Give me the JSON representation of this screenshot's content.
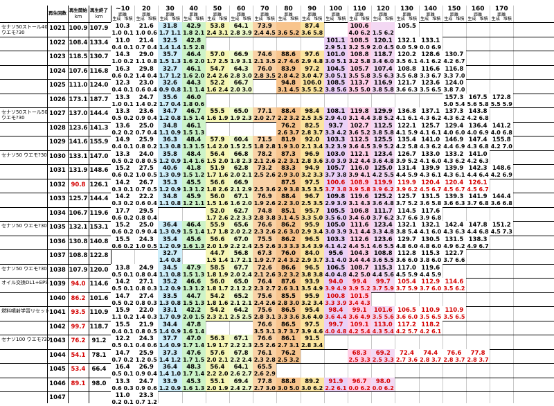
{
  "header": {
    "col_labels": [
      "再生回数",
      "再生開始",
      "再生終了"
    ],
    "unit": "km",
    "dist_label": "距離",
    "sub_labels": [
      "生成",
      "堆積"
    ],
    "distances": [
      "~10",
      "20",
      "30",
      "40",
      "50",
      "60",
      "70",
      "80",
      "90",
      "100",
      "110",
      "120",
      "130",
      "140",
      "150",
      "160",
      "170"
    ]
  },
  "notes": {
    "n1021": "セナソ50ストール40",
    "n1021b": "ウエモ?30",
    "n1027": "セナソ50ストール50",
    "n1027b": "ウエモ?30",
    "n1030": "セナソ50 ウエモ?30",
    "n1035": "セナソ50 ウエモ?30",
    "n1038": "セナソ50 ウエモ?30",
    "n1039": "オイル交換DL1+EPS",
    "n1041": "燃料噴射学習リセット",
    "n1043": "セナソ100 ウエモ?30"
  },
  "rows": [
    {
      "id": "1021",
      "s": "100.9",
      "e": "107.9",
      "red": false,
      "top": [
        "10.3",
        "21.6",
        "31.8",
        "42.9",
        "53.8",
        "64.1",
        "73.9",
        "",
        "87.4",
        "",
        "100.6",
        "",
        "105.5"
      ],
      "bot": [
        "1.0 0.1",
        "1.0 0.6",
        "1.7 1.1",
        "1.8 2.1",
        "2.4 3.1",
        "2.8 3.9",
        "2.4 4.5",
        "3.6 5.2",
        "3.6 5.8",
        "",
        "4.0 6.2",
        "1.5 6.2"
      ]
    },
    {
      "id": "1022",
      "s": "108.4",
      "e": "133.4",
      "red": false,
      "top": [
        "11.0",
        "21.4",
        "32.5",
        "42.8",
        "",
        "",
        "",
        "",
        "",
        "101.1",
        "108.5",
        "120.1",
        "132.1",
        "133.1"
      ],
      "bot": [
        "0.4 0.1",
        "0.7 0.4",
        "1.4 1.4",
        "1.5 2.8",
        "",
        "",
        "",
        "",
        "",
        "2.9 5.1",
        "3.2 5.9",
        "2.0 4.5",
        "0.0 5.9",
        "0.0 6.9"
      ]
    },
    {
      "id": "1023",
      "s": "118.5",
      "e": "130.7",
      "red": false,
      "top": [
        "14.3",
        "29.0",
        "35.7",
        "46.4",
        "57.0",
        "66.9",
        "74.6",
        "88.6",
        "97.6",
        "101.0",
        "108.8",
        "118.7",
        "120.2",
        "128.6",
        "130.7"
      ],
      "bot": [
        "1.0 0.2",
        "1.1 0.8",
        "1.5 1.3",
        "1.6 2.0",
        "1.7 2.5",
        "1.9 3.1",
        "2.1 3.5",
        "2.7 4.6",
        "2.9 4.8",
        "3.0 5.1",
        "3.2 5.8",
        "3.4 6.0",
        "3.5 6.1",
        "4.1 6.2",
        "4.2 6.7"
      ]
    },
    {
      "id": "1024",
      "s": "107.6",
      "e": "116.8",
      "red": false,
      "top": [
        "16.3",
        "29.8",
        "32.7",
        "46.1",
        "54.7",
        "64.3",
        "76.0",
        "83.9",
        "97.2",
        "104.5",
        "105.7",
        "107.4",
        "108.8",
        "116.6",
        "116.8"
      ],
      "bot": [
        "0.6 0.2",
        "1.4 0.4",
        "1.7 1.2",
        "1.6 2.0",
        "2.4 2.6",
        "2.8 3.0",
        "2.8 3.5",
        "2.8 4.2",
        "3.0 4.7",
        "3.0 5.1",
        "3.5 5.8",
        "3.5 6.3",
        "3.5 6.8",
        "3.3 6.7",
        "3.3 7.0"
      ]
    },
    {
      "id": "1025",
      "s": "111.0",
      "e": "124.0",
      "red": false,
      "top": [
        "12.3",
        "23.0",
        "32.6",
        "44.3",
        "52.2",
        "66.7",
        "",
        "94.8",
        "106.0",
        "108.5",
        "113.7",
        "116.9",
        "121.7",
        "123.6",
        "124.0"
      ],
      "bot": [
        "0.4 0.1",
        "0.6 0.4",
        "0.9 0.8",
        "1.1 1.4",
        "1.6 2.4",
        "2.0 3.0",
        "",
        "3.1 4.5",
        "3.5 5.2",
        "3.8 5.6",
        "3.5 5.0",
        "3.8 5.8",
        "3.6 6.3",
        "3.5 6.5",
        "3.8 7.0"
      ]
    },
    {
      "id": "1026",
      "s": "173.1",
      "e": "187.7",
      "red": false,
      "top": [
        "13.3",
        "24.7",
        "35.6",
        "46.0",
        "",
        "",
        "",
        "",
        "",
        "",
        "",
        "",
        "",
        "",
        "157.3",
        "167.5",
        "172.8"
      ],
      "bot": [
        "1.0 0.1",
        "1.4 0.2",
        "1.7 0.4",
        "1.8 0.6",
        "",
        "",
        "",
        "",
        "",
        "",
        "",
        "",
        "",
        "",
        "5.0 5.4",
        "5.6 5.8",
        "5.5 5.9"
      ]
    },
    {
      "id": "1027",
      "s": "137.0",
      "e": "144.4",
      "red": false,
      "top": [
        "13.3",
        "23.6",
        "34.7",
        "46.7",
        "55.5",
        "65.0",
        "77.1",
        "88.4",
        "98.4",
        "108.1",
        "119.8",
        "129.9",
        "136.8",
        "137.1",
        "137.3",
        "143.8"
      ],
      "bot": [
        "0.5 0.2",
        "0.9 0.4",
        "1.2 0.8",
        "1.5 1.4",
        "1.6 1.9",
        "1.9 2.3",
        "2.0 2.7",
        "2.2 3.2",
        "2.5 3.5",
        "2.9 4.0",
        "3.1 4.4",
        "3.8 5.2",
        "4.1 6.1",
        "4.3 6.2",
        "4.3 6.2",
        "4.2 6.8"
      ]
    },
    {
      "id": "1028",
      "s": "123.6",
      "e": "141.3",
      "red": false,
      "top": [
        "13.6",
        "25.0",
        "34.8",
        "46.1",
        "",
        "",
        "",
        "76.2",
        "82.5",
        "93.7",
        "102.7",
        "112.5",
        "122.1",
        "125.7",
        "129.4",
        "136.4",
        "141.2"
      ],
      "bot": [
        "0.2 0.2",
        "0.7 0.4",
        "1.1 0.9",
        "1.5 1.3",
        "",
        "",
        "",
        "2.6 3.7",
        "2.8 3.7",
        "3.3 4.2",
        "3.6 5.2",
        "3.8 5.8",
        "4.1 5.9",
        "4.1 6.1",
        "4.0 6.0",
        "4.0 6.9",
        "4.0 6.8"
      ]
    },
    {
      "id": "1029",
      "s": "141.6",
      "e": "155.9",
      "red": false,
      "top": [
        "14.9",
        "25.9",
        "36.3",
        "48.4",
        "57.9",
        "60.4",
        "71.5",
        "81.9",
        "92.0",
        "103.3",
        "112.5",
        "125.5",
        "135.4",
        "141.0",
        "146.9",
        "147.4",
        "155.8"
      ],
      "bot": [
        "0.4 0.1",
        "0.8 0.2",
        "1.3 0.8",
        "1.3 1.5",
        "1.4 2.0",
        "1.5 2.5",
        "1.8 2.8",
        "1.9 3.0",
        "2.1 3.4",
        "3.2 3.9",
        "3.6 4.5",
        "3.9 5.2",
        "4.2 5.8",
        "4.3 6.2",
        "4.4 6.9",
        "4.3 6.8",
        "4.2 7.0"
      ]
    },
    {
      "id": "1030",
      "s": "133.1",
      "e": "147.0",
      "red": false,
      "top": [
        "13.3",
        "24.0",
        "35.8",
        "48.4",
        "56.4",
        "66.8",
        "78.2",
        "87.3",
        "96.9",
        "103.0",
        "112.1",
        "123.4",
        "126.7",
        "133.0",
        "133.2",
        "141.0"
      ],
      "bot": [
        "0.5 0.2",
        "0.8 0.5",
        "1.2 0.9",
        "1.4 1.6",
        "1.5 2.0",
        "1.8 2.3",
        "2.1 2.6",
        "2.2 3.1",
        "2.8 3.6",
        "3.0 3.9",
        "3.2 4.4",
        "3.6 4.8",
        "3.9 5.2",
        "4.1 6.0",
        "4.3 6.2",
        "4.2 6.3"
      ]
    },
    {
      "id": "1031",
      "s": "131.9",
      "e": "148.6",
      "red": false,
      "top": [
        "15.2",
        "27.5",
        "40.6",
        "41.8",
        "51.9",
        "62.8",
        "73.2",
        "83.3",
        "94.9",
        "105.7",
        "116.0",
        "125.0",
        "131.4",
        "139.9",
        "139.9",
        "142.3",
        "148.6"
      ],
      "bot": [
        "0.6 0.2",
        "1.0 0.5",
        "1.3 0.9",
        "1.5 1.2",
        "1.7 1.6",
        "2.0 2.1",
        "2.5 2.6",
        "2.9 3.0",
        "3.2 3.3",
        "3.7 3.8",
        "3.9 4.1",
        "4.2 5.5",
        "4.4 5.9",
        "4.3 6.1",
        "4.3 6.1",
        "4.4 6.4",
        "4.2 6.9"
      ]
    },
    {
      "id": "1032",
      "s": "90.8",
      "e": "126.1",
      "red": true,
      "top": [
        "14.2",
        "26.7",
        "35.3",
        "45.5",
        "56.6",
        "66.9",
        "",
        "87.5",
        "97.5",
        "100.6",
        "108.9",
        "119.9",
        "119.9",
        "120.4",
        "120.4",
        "126.1"
      ],
      "bot": [
        "0.3 0.1",
        "0.7 0.5",
        "1.2 0.9",
        "1.3 1.2",
        "1.8 2.6",
        "2.1 2.9",
        "2.5 3.6",
        "2.9 3.8",
        "3.5 3.5",
        "3.7 3.8",
        "3.9 5.8",
        "3.9 6.2",
        "3.9 6.2",
        "4.5 6.7",
        "4.5 6.7",
        "4.5 6.7"
      ]
    },
    {
      "id": "1033",
      "s": "125.7",
      "e": "144.4",
      "red": false,
      "top": [
        "14.2",
        "22.2",
        "34.8",
        "45.9",
        "56.0",
        "67.1",
        "76.9",
        "88.4",
        "96.7",
        "109.8",
        "119.6",
        "125.2",
        "125.7",
        "131.5",
        "139.3",
        "141.9",
        "144.4"
      ],
      "bot": [
        "0.3 0.2",
        "0.6 0.4",
        "1.1 0.8",
        "1.2 1.1",
        "1.5 1.6",
        "1.6 2.0",
        "1.9 2.6",
        "2.2 3.0",
        "2.5 3.5",
        "2.9 3.9",
        "3.1 4.3",
        "3.6 4.8",
        "3.7 5.2",
        "3.6 5.8",
        "3.6 6.3",
        "3.7 6.8",
        "3.6 6.8"
      ]
    },
    {
      "id": "1034",
      "s": "106.7",
      "e": "119.6",
      "red": false,
      "top": [
        "17.7",
        "29.5",
        "",
        "",
        "52.0",
        "62.7",
        "74.8",
        "85.1",
        "95.7",
        "105.5",
        "106.8",
        "111.7",
        "114.5",
        "117.6"
      ],
      "bot": [
        "0.6 0.2",
        "0.8 0.4",
        "",
        "",
        "1.7 2.6",
        "2.2 3.3",
        "2.8 3.8",
        "3.1 4.5",
        "3.3 5.0",
        "3.5 6.0",
        "3.4 6.0",
        "3.7 6.2",
        "3.7 6.6",
        "3.9 6.8"
      ]
    },
    {
      "id": "1035",
      "s": "132.1",
      "e": "153.1",
      "red": false,
      "top": [
        "15.2",
        "25.0",
        "36.4",
        "46.4",
        "55.9",
        "65.6",
        "76.6",
        "86.2",
        "95.9",
        "105.0",
        "111.6",
        "123.4",
        "132.1",
        "132.1",
        "142.4",
        "147.8",
        "151.2"
      ],
      "bot": [
        "0.6 0.2",
        "0.9 0.4",
        "1.3 0.9",
        "1.5 1.4",
        "1.7 1.8",
        "2.0 2.2",
        "2.3 2.6",
        "2.6 3.0",
        "2.9 3.4",
        "3.0 3.9",
        "3.1 4.4",
        "3.3 4.8",
        "3.8 5.4",
        "4.1 6.0",
        "4.3 6.3",
        "4.4 6.8",
        "4.5 7.3"
      ]
    },
    {
      "id": "1036",
      "s": "130.8",
      "e": "140.8",
      "red": false,
      "top": [
        "15.5",
        "24.3",
        "35.4",
        "45.6",
        "56.6",
        "67.0",
        "75.5",
        "86.2",
        "96.5",
        "103.3",
        "112.6",
        "123.6",
        "129.7",
        "130.5",
        "131.5",
        "138.3"
      ],
      "bot": [
        "0.6 0.2",
        "1.0 0.5",
        "1.2 0.9",
        "1.6 1.3",
        "2.0 1.9",
        "2.2 2.4",
        "2.5 2.6",
        "3.3 3.3",
        "3.4 3.9",
        "4.1 4.2",
        "4.4 5.1",
        "4.6 5.5",
        "4.8 6.0",
        "4.8 6.0",
        "4.9 6.2",
        "4.9 6.7"
      ]
    },
    {
      "id": "1037",
      "s": "108.8",
      "e": "122.8",
      "red": false,
      "top": [
        "",
        "",
        "32.7",
        "",
        "44.7",
        "56.8",
        "67.3",
        "76.0",
        "84.0",
        "95.6",
        "104.3",
        "108.8",
        "112.8",
        "115.3",
        "122.7"
      ],
      "bot": [
        "",
        "",
        "1.4 0.8",
        "",
        "1.5 1.4",
        "1.7 2.1",
        "1.9 2.7",
        "2.4 3.2",
        "2.9 3.7",
        "3.1 4.0",
        "3.4 4.4",
        "3.6 5.5",
        "3.6 6.0",
        "3.8 6.0",
        "3.7 6.6"
      ]
    },
    {
      "id": "1038",
      "s": "107.9",
      "e": "120.0",
      "red": false,
      "top": [
        "13.8",
        "24.9",
        "34.5",
        "47.9",
        "58.5",
        "67.7",
        "72.6",
        "86.6",
        "96.5",
        "106.5",
        "108.7",
        "115.3",
        "117.0",
        "119.6"
      ],
      "bot": [
        "0.5 0.1",
        "0.8 0.4",
        "1.1 0.8",
        "1.5 1.3",
        "1.8 1.9",
        "2.0 2.4",
        "2.1 2.6",
        "3.2 3.2",
        "3.8 3.8",
        "4.0 4.8",
        "4.2 5.0",
        "4.4 5.6",
        "4.5 5.9",
        "4.4 5.9"
      ]
    },
    {
      "id": "1039",
      "s": "94.0",
      "e": "114.6",
      "red": true,
      "top": [
        "14.2",
        "27.1",
        "35.2",
        "46.6",
        "56.0",
        "65.0",
        "76.4",
        "87.6",
        "93.9",
        "94.0",
        "99.4",
        "99.7",
        "105.4",
        "112.9",
        "114.6"
      ],
      "bot": [
        "0.5 0.1",
        "0.8 0.3",
        "1.2 0.9",
        "1.3 1.2",
        "1.8 1.7",
        "2.1 2.2",
        "2.3 2.7",
        "2.6 3.1",
        "3.5 4.9",
        "3.9 4.9",
        "3.9 5.2",
        "3.7 5.9",
        "3.7 5.9",
        "3.7 6.0",
        "3.5 6.2"
      ]
    },
    {
      "id": "1040",
      "s": "86.2",
      "e": "101.6",
      "red": true,
      "top": [
        "14.7",
        "27.4",
        "33.5",
        "44.7",
        "54.2",
        "65.2",
        "75.6",
        "85.5",
        "95.9",
        "100.8",
        "101.5"
      ],
      "bot": [
        "0.5 0.2",
        "0.8 0.3",
        "1.3 0.8",
        "1.5 1.3",
        "1.8 1.6",
        "2.1 2.1",
        "2.4 2.6",
        "2.8 3.0",
        "3.2 3.4",
        "3.3 3.9",
        "3.4 4.3"
      ]
    },
    {
      "id": "1041",
      "s": "93.5",
      "e": "110.9",
      "red": true,
      "top": [
        "15.9",
        "22.0",
        "33.1",
        "42.2",
        "54.2",
        "64.2",
        "75.6",
        "86.5",
        "95.4",
        "98.4",
        "99.1",
        "101.6",
        "106.5",
        "110.9",
        "110.9"
      ],
      "bot": [
        "1.1 0.2",
        "1.4 0.3",
        "1.7 0.9",
        "2.0 1.5",
        "2.3 2.1",
        "2.5 2.5",
        "2.8 3.1",
        "3.3 3.6",
        "3.6 4.0",
        "3.6 4.4",
        "3.6 4.9",
        "3.5 5.6",
        "3.6 6.0",
        "3.5 6.5",
        "3.5 6.5"
      ]
    },
    {
      "id": "1042",
      "s": "99.7",
      "e": "118.7",
      "red": true,
      "top": [
        "15.5",
        "21.9",
        "34.4",
        "47.8",
        "",
        "",
        "76.6",
        "86.5",
        "97.5",
        "99.7",
        "109.1",
        "113.0",
        "117.2",
        "118.2"
      ],
      "bot": [
        "0.4 0.1",
        "0.8 0.5",
        "1.4 0.9",
        "1.6 1.4",
        "",
        "",
        "3.5 3.1",
        "3.7 3.7",
        "3.9 4.6",
        "4.0 4.8",
        "4.2 5.4",
        "4.3 5.4",
        "4.2 5.7",
        "4.2 6.1"
      ]
    },
    {
      "id": "1043",
      "s": "76.2",
      "e": "91.2",
      "red": true,
      "top": [
        "12.2",
        "24.3",
        "37.7",
        "47.0",
        "56.3",
        "67.1",
        "76.6",
        "86.1",
        "91.5"
      ],
      "bot": [
        "0.5 0.1",
        "0.4 0.6",
        "1.4 0.9",
        "1.7 1.4",
        "1.9 1.7",
        "2.2 2.3",
        "2.5 2.6",
        "2.7 3.1",
        "2.8 3.4"
      ]
    },
    {
      "id": "1044",
      "s": "54.1",
      "e": "78.1",
      "red": true,
      "top": [
        "14.7",
        "25.9",
        "37.3",
        "47.6",
        "57.6",
        "67.8",
        "76.1",
        "76.2",
        "",
        "",
        "68.3",
        "69.2",
        "72.4",
        "74.4",
        "76.6",
        "77.8"
      ],
      "bot": [
        "0.7 0.2",
        "1.2 0.5",
        "1.4 1.2",
        "1.7 1.5",
        "2.0 2.1",
        "2.2 2.4",
        "2.3 2.8",
        "2.5 3.2",
        "",
        "",
        "2.5 3.3",
        "2.5 3.3",
        "2.7 3.6",
        "2.8 3.7",
        "2.8 3.7",
        "2.8 3.7"
      ]
    },
    {
      "id": "1045",
      "s": "53.4",
      "e": "66.4",
      "red": true,
      "top": [
        "16.4",
        "26.9",
        "36.4",
        "48.3",
        "56.4",
        "64.1",
        "65.5"
      ],
      "bot": [
        "0.5 0.1",
        "0.9 0.4",
        "1.4 1.0",
        "1.7 1.4",
        "2.2 2.0",
        "2.6 2.7",
        "2.6 2.9"
      ]
    },
    {
      "id": "1046",
      "s": "89.1",
      "e": "98.0",
      "red": true,
      "top": [
        "13.3",
        "24.7",
        "33.9",
        "45.3",
        "55.1",
        "69.4",
        "77.8",
        "88.8",
        "89.2",
        "91.9",
        "96.7",
        "98.0"
      ],
      "bot": [
        "0.6 0.3",
        "0.9 0.6",
        "1.2 0.9",
        "1.6 1.3",
        "2.0 1.9",
        "2.4 2.7",
        "2.7 3.0",
        "3.0 5.0",
        "3.0 6.2",
        "2.2 6.1",
        "0.0 6.2",
        "0.0 6.2"
      ]
    },
    {
      "id": "1047",
      "s": "",
      "e": "",
      "red": false,
      "top": [
        "11.0",
        "23.3"
      ],
      "bot": [
        "0.2 0.1",
        "0.7 1.2"
      ]
    }
  ],
  "colors": {
    "col0": "#ffffff",
    "col1": "#ffffff",
    "col2": "#cdeefa",
    "col3": "#cdf3c8",
    "col4": "#f6f6b5",
    "col5": "#eef9cc",
    "col6": "#f9d2a6",
    "col7": "#f8c48d",
    "col8": "#fbe5a0",
    "col9": "#ead0f7",
    "col10": "#ffcfe6",
    "col11": "#f3d8f3",
    "col12": "#ffffff",
    "red": "#d40000"
  }
}
